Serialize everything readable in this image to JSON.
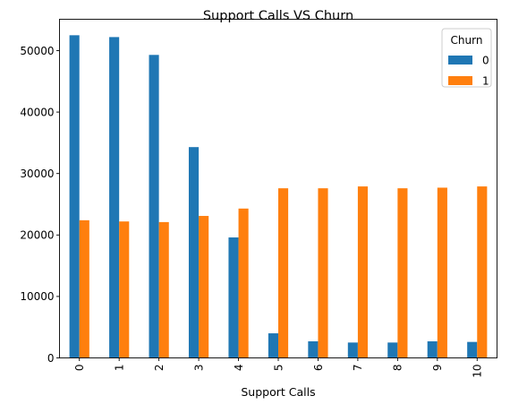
{
  "chart_data": {
    "type": "bar",
    "title": "Support Calls VS Churn",
    "xlabel": "Support Calls",
    "ylabel": "",
    "categories": [
      "0",
      "1",
      "2",
      "3",
      "4",
      "5",
      "6",
      "7",
      "8",
      "9",
      "10"
    ],
    "series": [
      {
        "name": "0",
        "color": "#1f77b4",
        "values": [
          52500,
          52200,
          49300,
          34300,
          19600,
          4000,
          2700,
          2500,
          2500,
          2700,
          2600
        ]
      },
      {
        "name": "1",
        "color": "#ff7f0e",
        "values": [
          22400,
          22200,
          22100,
          23100,
          24300,
          27600,
          27600,
          27900,
          27600,
          27700,
          27900
        ]
      }
    ],
    "ylim": [
      0,
      55100
    ],
    "yticks": [
      0,
      10000,
      20000,
      30000,
      40000,
      50000
    ],
    "xtick_rotation": "vertical",
    "grid": false,
    "legend": {
      "title": "Churn",
      "placement": "top-right"
    }
  }
}
